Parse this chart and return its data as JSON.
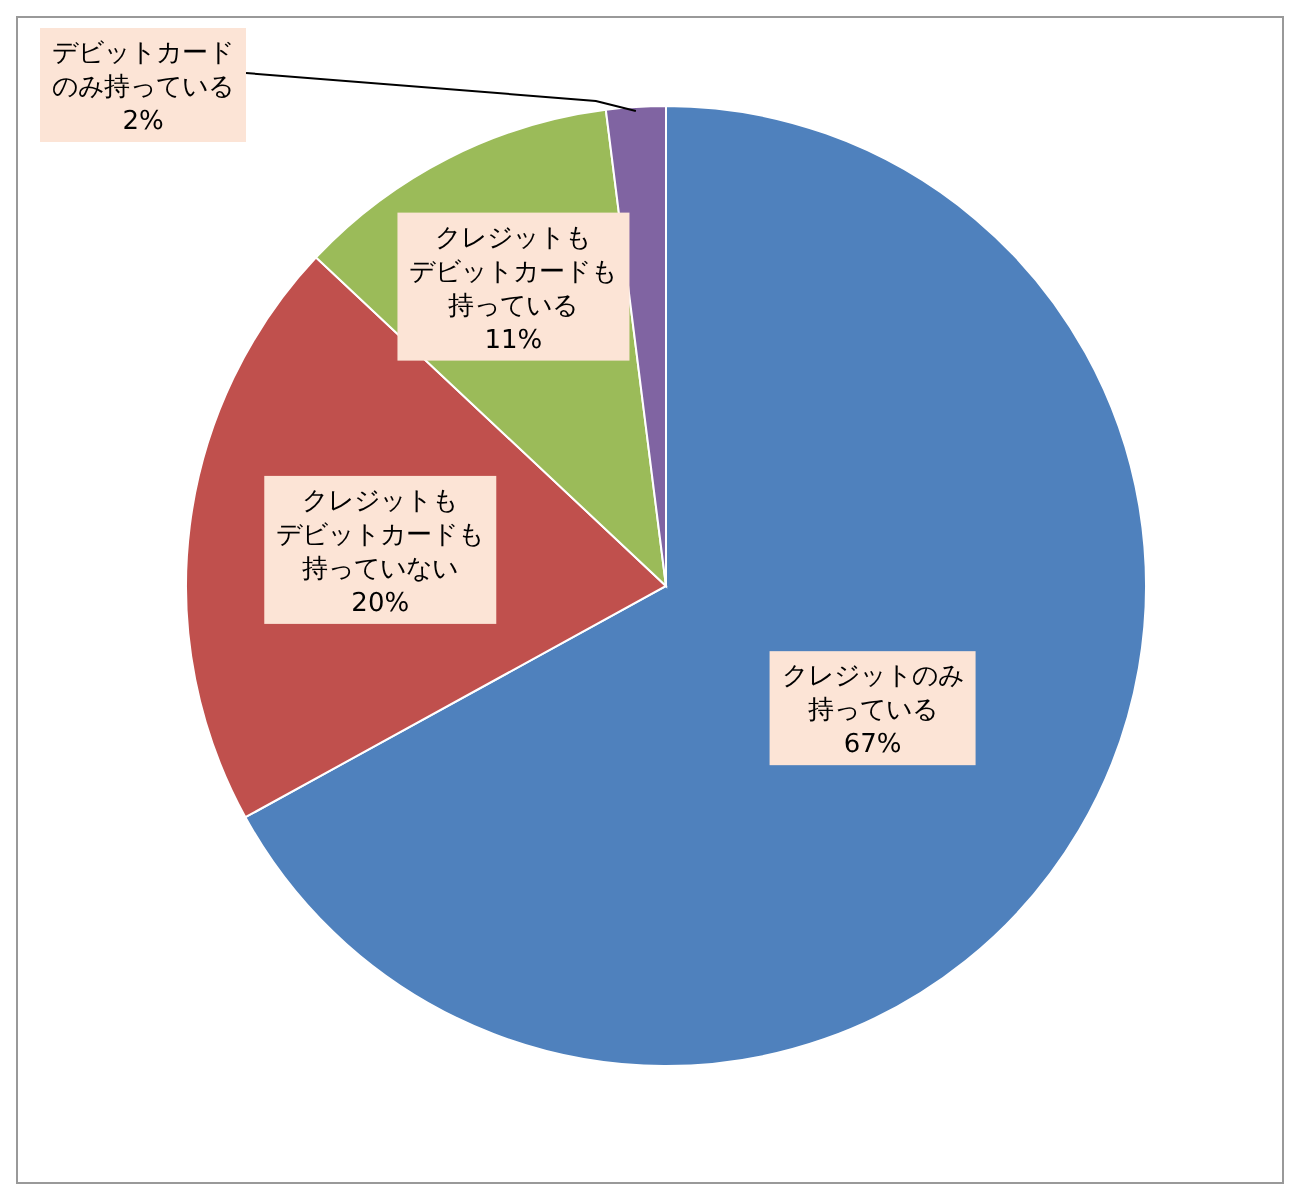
{
  "chart_data": {
    "type": "pie",
    "categories": [
      "クレジットのみ持っている",
      "クレジットもデビットカードも持っていない",
      "クレジットもデビットカードも持っている",
      "デビットカードのみ持っている"
    ],
    "values": [
      67,
      20,
      11,
      2
    ],
    "value_labels": [
      "67%",
      "20%",
      "11%",
      "2%"
    ],
    "colors": [
      "#4f81bd",
      "#c0504d",
      "#9bbb59",
      "#8064a2"
    ]
  }
}
